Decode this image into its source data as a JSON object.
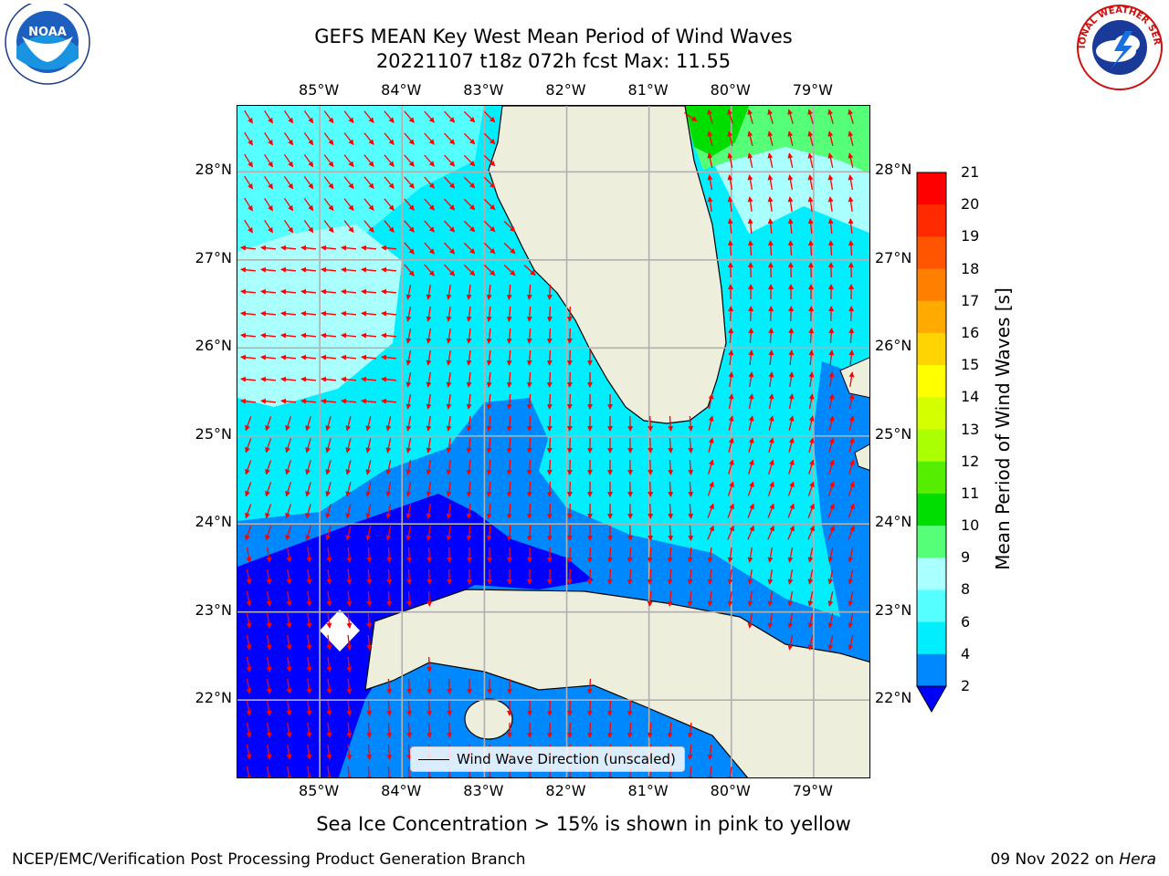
{
  "title_line1": "GEFS MEAN Key West Mean Period of Wind Waves",
  "title_line2": "20221107 t18z 072h fcst   Max: 11.55",
  "map": {
    "longitude_labels": [
      "85°W",
      "84°W",
      "83°W",
      "82°W",
      "81°W",
      "80°W",
      "79°W"
    ],
    "latitude_labels": [
      "28°N",
      "27°N",
      "26°N",
      "25°N",
      "24°N",
      "23°N",
      "22°N"
    ],
    "lon_range": [
      -86,
      -78.3
    ],
    "lat_range": [
      21.1,
      28.75
    ],
    "land_color": "#eeeedd",
    "arrow_color": "#ff0000",
    "grid_color": "#b0b0b0"
  },
  "legend": {
    "label": "Wind Wave Direction (unscaled)"
  },
  "colorbar": {
    "label": "Mean Period of Wind Waves [s]",
    "ticks": [
      "21",
      "20",
      "19",
      "18",
      "17",
      "16",
      "15",
      "14",
      "13",
      "12",
      "11",
      "10",
      "9",
      "8",
      "6",
      "4",
      "2"
    ],
    "colors": [
      "#ff0000",
      "#ff2a00",
      "#ff5500",
      "#ff8000",
      "#ffaa00",
      "#ffd400",
      "#ffff00",
      "#d4ff00",
      "#aaff00",
      "#55ee00",
      "#00dd00",
      "#55ff77",
      "#aaffff",
      "#55ffff",
      "#00eeff",
      "#0088ff",
      "#0000ff"
    ]
  },
  "subtitle": "Sea Ice Concentration > 15% is shown in pink to yellow",
  "footer": {
    "left": "NCEP/EMC/Verification Post Processing Product Generation Branch",
    "right_date": "09 Nov 2022 on ",
    "right_host": "Hera"
  },
  "logos": {
    "left": "NOAA",
    "right": "NATIONAL WEATHER SERVICE"
  }
}
